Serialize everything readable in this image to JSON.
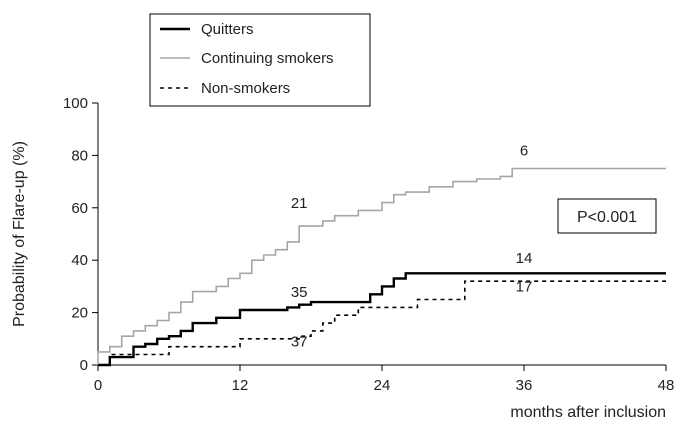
{
  "chart_data": {
    "type": "line",
    "xlabel": "months after inclusion",
    "ylabel": "Probability of Flare-up (%)",
    "xlim": [
      0,
      48
    ],
    "ylim": [
      0,
      100
    ],
    "x_ticks": [
      "0",
      "12",
      "24",
      "36",
      "48"
    ],
    "y_ticks": [
      "0",
      "20",
      "40",
      "60",
      "80",
      "100"
    ],
    "grid": false,
    "legend_position": "top-left",
    "series": [
      {
        "name": "Quitters",
        "color": "#000000",
        "style": "solid",
        "weight": "bold",
        "x": [
          0,
          1,
          1,
          3,
          3,
          4,
          4,
          5,
          5,
          6,
          6,
          7,
          7,
          8,
          8,
          10,
          10,
          12,
          12,
          16,
          16,
          17,
          17,
          18,
          18,
          23,
          23,
          24,
          24,
          25,
          25,
          26,
          26,
          48
        ],
        "y": [
          0,
          0,
          3,
          3,
          7,
          7,
          8,
          8,
          10,
          10,
          11,
          11,
          13,
          13,
          16,
          16,
          18,
          18,
          21,
          21,
          22,
          22,
          23,
          23,
          24,
          24,
          27,
          27,
          30,
          30,
          33,
          33,
          35,
          35
        ]
      },
      {
        "name": "Continuing smokers",
        "color": "#a6a6a6",
        "style": "solid",
        "weight": "normal",
        "x": [
          0,
          0,
          1,
          1,
          2,
          2,
          3,
          3,
          4,
          4,
          5,
          5,
          6,
          6,
          7,
          7,
          8,
          8,
          10,
          10,
          11,
          11,
          12,
          12,
          13,
          13,
          14,
          14,
          15,
          15,
          16,
          16,
          17,
          17,
          19,
          19,
          20,
          20,
          22,
          22,
          24,
          24,
          25,
          25,
          26,
          26,
          28,
          28,
          30,
          30,
          32,
          32,
          34,
          34,
          35,
          35,
          48
        ],
        "y": [
          0,
          5,
          5,
          7,
          7,
          11,
          11,
          13,
          13,
          15,
          15,
          17,
          17,
          20,
          20,
          24,
          24,
          28,
          28,
          30,
          30,
          33,
          33,
          35,
          35,
          40,
          40,
          42,
          42,
          44,
          44,
          47,
          47,
          53,
          53,
          55,
          55,
          57,
          57,
          59,
          59,
          62,
          62,
          65,
          65,
          66,
          66,
          68,
          68,
          70,
          70,
          71,
          71,
          72,
          72,
          75,
          75
        ]
      },
      {
        "name": "Non-smokers",
        "color": "#000000",
        "style": "dashed",
        "weight": "normal",
        "x": [
          0,
          1,
          1,
          6,
          6,
          12,
          12,
          17,
          17,
          18,
          18,
          19,
          19,
          20,
          20,
          22,
          22,
          27,
          27,
          31,
          31,
          48
        ],
        "y": [
          0,
          0,
          4,
          4,
          7,
          7,
          10,
          10,
          11,
          11,
          13,
          13,
          16,
          16,
          19,
          19,
          22,
          22,
          25,
          25,
          32,
          32
        ]
      }
    ],
    "annotations": [
      {
        "text": "21",
        "x": 17,
        "y": 60
      },
      {
        "text": "6",
        "x": 36,
        "y": 80
      },
      {
        "text": "35",
        "x": 17,
        "y": 26
      },
      {
        "text": "37",
        "x": 17,
        "y": 7
      },
      {
        "text": "14",
        "x": 36,
        "y": 39
      },
      {
        "text": "17",
        "x": 36,
        "y": 28
      }
    ],
    "pvalue_label": "P<0.001"
  }
}
